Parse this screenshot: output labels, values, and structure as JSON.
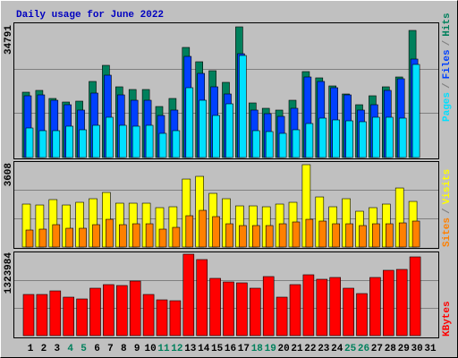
{
  "chart_data": [
    {
      "type": "bar",
      "title": "Daily usage for June 2022",
      "ylim": [
        0,
        34791
      ],
      "yticks": [
        34791
      ],
      "legend_separator": "/",
      "series": [
        {
          "name": "Hits",
          "color": "#00805c",
          "values": [
            17396,
            17872,
            15728,
            14775,
            15013,
            20255,
            24545,
            18826,
            18111,
            18111,
            13583,
            15728,
            29311,
            25498,
            23115,
            20017,
            34791,
            14536,
            13107,
            12630,
            15251,
            22877,
            21209,
            19064,
            16919,
            14060,
            16443,
            18826,
            21447,
            33839,
            null
          ]
        },
        {
          "name": "Files",
          "color": "#0040ff",
          "values": [
            16443,
            16681,
            15251,
            14060,
            12630,
            17158,
            21924,
            16681,
            15251,
            15251,
            11200,
            12630,
            26928,
            22400,
            18826,
            16919,
            27643,
            12630,
            11677,
            10962,
            13107,
            21447,
            20255,
            18587,
            16681,
            12630,
            14060,
            17873,
            20970,
            26213,
            null
          ]
        },
        {
          "name": "Pages",
          "color": "#00e0ff",
          "values": [
            7864,
            7149,
            7149,
            8341,
            7387,
            8579,
            10724,
            8579,
            8341,
            8579,
            6434,
            7149,
            18587,
            15251,
            11200,
            14298,
            27166,
            7149,
            6911,
            6434,
            7387,
            9055,
            10485,
            10009,
            9770,
            9532,
            10724,
            10724,
            10485,
            24783,
            null
          ]
        }
      ]
    },
    {
      "type": "bar",
      "ylim": [
        0,
        3608
      ],
      "yticks": [
        3608
      ],
      "legend_separator": "/",
      "series": [
        {
          "name": "Visits",
          "color": "#ffff00",
          "values": [
            1882,
            1842,
            2078,
            1842,
            1960,
            2117,
            2391,
            1921,
            1921,
            1921,
            1725,
            1764,
            2979,
            3097,
            2352,
            2117,
            1803,
            1803,
            1764,
            1882,
            1960,
            3608,
            2195,
            1764,
            2117,
            1568,
            1725,
            1882,
            2587,
            1999,
            null
          ]
        },
        {
          "name": "Sites",
          "color": "#ff8000",
          "values": [
            745,
            784,
            980,
            823,
            823,
            980,
            1215,
            980,
            1019,
            1019,
            784,
            862,
            1372,
            1607,
            1333,
            1019,
            941,
            941,
            941,
            1019,
            1098,
            1215,
            1137,
            1019,
            1019,
            941,
            1019,
            1019,
            1058,
            1137,
            null
          ]
        }
      ]
    },
    {
      "type": "bar",
      "ylim": [
        0,
        1323984
      ],
      "yticks": [
        1323984
      ],
      "categories": [
        "1",
        "2",
        "3",
        "4",
        "5",
        "6",
        "7",
        "8",
        "9",
        "10",
        "11",
        "12",
        "13",
        "14",
        "15",
        "16",
        "17",
        "18",
        "19",
        "20",
        "21",
        "22",
        "23",
        "24",
        "25",
        "26",
        "27",
        "28",
        "29",
        "30",
        "31"
      ],
      "category_colors": [
        "#000000",
        "#000000",
        "#000000",
        "#00805c",
        "#00805c",
        "#000000",
        "#000000",
        "#000000",
        "#000000",
        "#000000",
        "#00805c",
        "#00805c",
        "#000000",
        "#000000",
        "#000000",
        "#000000",
        "#000000",
        "#00805c",
        "#00805c",
        "#000000",
        "#000000",
        "#000000",
        "#000000",
        "#000000",
        "#00805c",
        "#00805c",
        "#000000",
        "#000000",
        "#000000",
        "#000000",
        "#000000"
      ],
      "series": [
        {
          "name": "KBytes",
          "color": "#ff0000",
          "values": [
            669254,
            669254,
            727450,
            625607,
            596509,
            771097,
            829293,
            814744,
            887489,
            669254,
            581960,
            567411,
            1323984,
            1236690,
            931136,
            872940,
            858391,
            771097,
            960234,
            625607,
            829293,
            989332,
            916587,
            945685,
            771097,
            683803,
            945685,
            1062077,
            1076626,
            1280312,
            null
          ]
        }
      ]
    }
  ]
}
